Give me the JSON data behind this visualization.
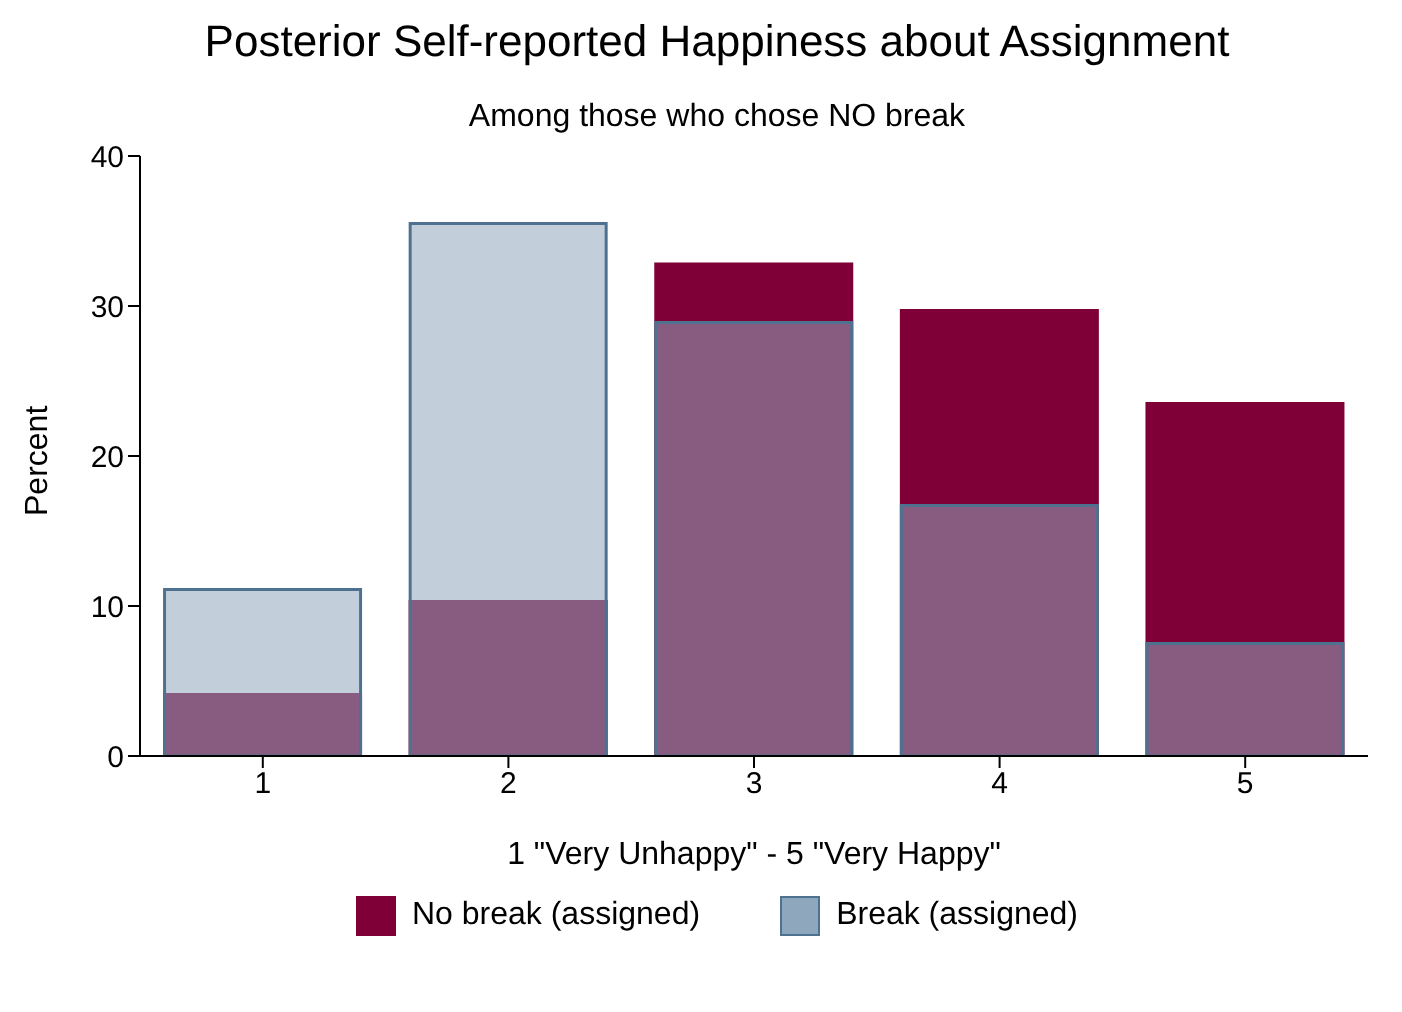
{
  "chart_data": {
    "type": "bar",
    "title": "Posterior Self-reported Happiness about Assignment",
    "subtitle": "Among those who chose NO break",
    "xlabel": "1 \"Very Unhappy\" - 5 \"Very Happy\"",
    "ylabel": "Percent",
    "categories": [
      "1",
      "2",
      "3",
      "4",
      "5"
    ],
    "series": [
      {
        "name": "No break (assigned)",
        "color": "#7f0037",
        "values": [
          4.1,
          10.3,
          32.8,
          29.7,
          23.5
        ]
      },
      {
        "name": "Break (assigned)",
        "color": "#8fa7bd",
        "values": [
          11.1,
          35.5,
          28.9,
          16.7,
          7.5
        ]
      }
    ],
    "ylim": [
      0,
      40
    ],
    "yticks": [
      0,
      10,
      20,
      30,
      40
    ],
    "legend": "bottom"
  }
}
